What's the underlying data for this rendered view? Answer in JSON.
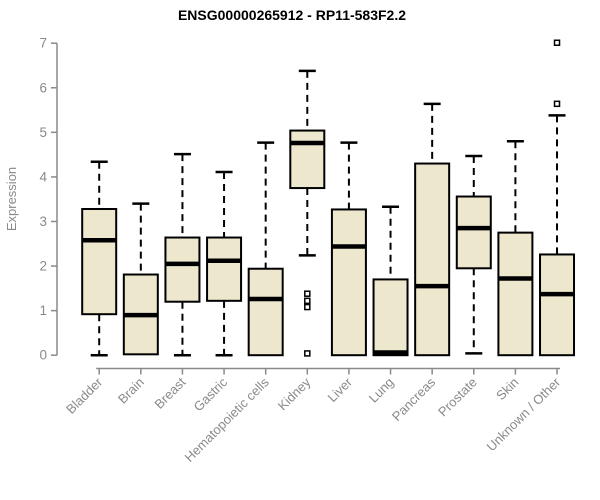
{
  "chart_data": {
    "type": "boxplot",
    "title": "ENSG00000265912 - RP11-583F2.2",
    "xlabel": "",
    "ylabel": "Expression",
    "ylim": [
      0,
      7
    ],
    "yticks": [
      0,
      1,
      2,
      3,
      4,
      5,
      6,
      7
    ],
    "grid": false,
    "legend": false,
    "categories": [
      "Bladder",
      "Brain",
      "Breast",
      "Gastric",
      "Hematopoietic cells",
      "Kidney",
      "Liver",
      "Lung",
      "Pancreas",
      "Prostate",
      "Skin",
      "Unknown / Other"
    ],
    "series": [
      {
        "category": "Bladder",
        "whisker_low": 0.0,
        "q1": 0.92,
        "median": 2.58,
        "q3": 3.28,
        "whisker_high": 4.34,
        "outliers": []
      },
      {
        "category": "Brain",
        "whisker_low": 0.0,
        "q1": 0.02,
        "median": 0.9,
        "q3": 1.81,
        "whisker_high": 3.4,
        "outliers": []
      },
      {
        "category": "Breast",
        "whisker_low": 0.0,
        "q1": 1.2,
        "median": 2.05,
        "q3": 2.64,
        "whisker_high": 4.51,
        "outliers": []
      },
      {
        "category": "Gastric",
        "whisker_low": 0.0,
        "q1": 1.22,
        "median": 2.12,
        "q3": 2.64,
        "whisker_high": 4.11,
        "outliers": []
      },
      {
        "category": "Hematopoietic cells",
        "whisker_low": 0.0,
        "q1": 0.0,
        "median": 1.26,
        "q3": 1.94,
        "whisker_high": 4.77,
        "outliers": []
      },
      {
        "category": "Kidney",
        "whisker_low": 2.24,
        "q1": 3.75,
        "median": 4.76,
        "q3": 5.04,
        "whisker_high": 6.38,
        "outliers": [
          1.38,
          1.22,
          1.08,
          0.04
        ]
      },
      {
        "category": "Liver",
        "whisker_low": 0.0,
        "q1": 0.0,
        "median": 2.44,
        "q3": 3.27,
        "whisker_high": 4.77,
        "outliers": []
      },
      {
        "category": "Lung",
        "whisker_low": 0.0,
        "q1": 0.0,
        "median": 0.06,
        "q3": 1.7,
        "whisker_high": 3.33,
        "outliers": []
      },
      {
        "category": "Pancreas",
        "whisker_low": 0.0,
        "q1": 0.0,
        "median": 1.55,
        "q3": 4.3,
        "whisker_high": 5.64,
        "outliers": []
      },
      {
        "category": "Prostate",
        "whisker_low": 0.04,
        "q1": 1.95,
        "median": 2.85,
        "q3": 3.56,
        "whisker_high": 4.47,
        "outliers": []
      },
      {
        "category": "Skin",
        "whisker_low": 0.0,
        "q1": 0.0,
        "median": 1.72,
        "q3": 2.75,
        "whisker_high": 4.8,
        "outliers": []
      },
      {
        "category": "Unknown / Other",
        "whisker_low": 0.0,
        "q1": 0.0,
        "median": 1.37,
        "q3": 2.26,
        "whisker_high": 5.38,
        "outliers": [
          5.64,
          7.01
        ]
      }
    ],
    "colors": {
      "box_fill": "#EDE7CE",
      "box_border": "#000000",
      "median": "#000000",
      "whisker": "#000000",
      "outlier_fill": "#ffffff",
      "axis": "#8a8a8a",
      "tick_label": "#8a8a8a",
      "title": "#000000",
      "background": "#ffffff"
    }
  }
}
